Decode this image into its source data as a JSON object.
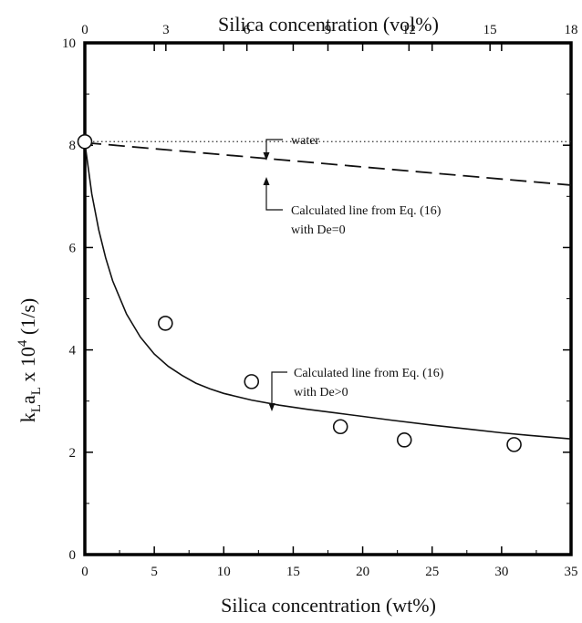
{
  "chart_data": {
    "type": "scatter",
    "title": "",
    "xlabel": "Silica concentration (wt%)",
    "x2label": "Silica concentration (vol%)",
    "ylabel_main": "k",
    "ylabel_sub1": "L",
    "ylabel_mid": "a",
    "ylabel_sub2": "L",
    "ylabel_times": " x 10",
    "ylabel_exp": "4",
    "ylabel_unit": " (1/s)",
    "xlim": [
      0,
      35
    ],
    "ylim": [
      0,
      10
    ],
    "x2lim": [
      0,
      18
    ],
    "xticks": [
      0,
      5,
      10,
      15,
      20,
      25,
      30,
      35
    ],
    "yticks": [
      0,
      2,
      4,
      6,
      8,
      10
    ],
    "x2ticks": [
      0,
      3,
      6,
      9,
      12,
      15,
      18
    ],
    "grid": false,
    "points": {
      "x": [
        0,
        5.8,
        12.0,
        18.4,
        23.0,
        30.9
      ],
      "y": [
        8.07,
        4.52,
        3.38,
        2.5,
        2.24,
        2.15
      ]
    },
    "water_line": {
      "y": 8.07
    },
    "de0_line": {
      "x": [
        0,
        35
      ],
      "y": [
        8.05,
        7.22
      ]
    },
    "de_pos_curve": {
      "x": [
        0,
        0.5,
        1,
        1.5,
        2,
        3,
        4,
        5,
        6,
        7,
        8,
        9,
        10,
        12,
        14,
        16,
        18,
        20,
        22,
        25,
        28,
        30,
        32,
        35
      ],
      "y": [
        8.05,
        7.05,
        6.35,
        5.8,
        5.35,
        4.7,
        4.25,
        3.92,
        3.68,
        3.5,
        3.35,
        3.24,
        3.15,
        3.02,
        2.92,
        2.84,
        2.77,
        2.7,
        2.63,
        2.53,
        2.44,
        2.38,
        2.33,
        2.26
      ]
    },
    "annotations": {
      "water": "water",
      "de0_line1": "Calculated line from Eq. (16)",
      "de0_line2": "with De=0",
      "de_pos_line1": "Calculated line from Eq. (16)",
      "de_pos_line2": "with De>0"
    }
  }
}
